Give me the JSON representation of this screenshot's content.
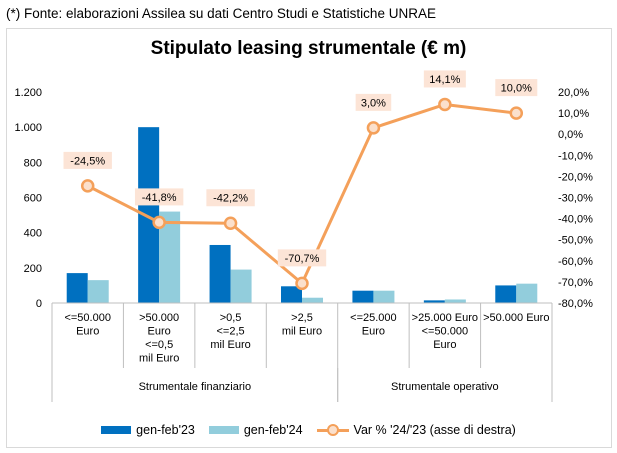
{
  "source_note": "(*) Fonte: elaborazioni Assilea su dati Centro Studi e Statistiche UNRAE",
  "colors": {
    "series1": "#0070c0",
    "series2": "#92cddc",
    "line": "#f4a05a",
    "marker_fill": "#fbe0cc",
    "label_bg": "#fce4d6"
  },
  "chart_data": {
    "type": "bar",
    "title": "Stipulato leasing strumentale (€ m)",
    "categories": [
      [
        "<=50.000",
        "Euro"
      ],
      [
        ">50.000",
        "Euro",
        "<=0,5",
        "mil Euro"
      ],
      [
        ">0,5",
        "<=2,5",
        "mil Euro"
      ],
      [
        ">2,5",
        "mil Euro"
      ],
      [
        "<=25.000",
        "Euro"
      ],
      [
        ">25.000 Euro",
        "<=50.000",
        "Euro"
      ],
      [
        ">50.000 Euro"
      ]
    ],
    "groups": [
      {
        "label": "Strumentale finanziario",
        "start": 0,
        "end": 3
      },
      {
        "label": "Strumentale operativo",
        "start": 4,
        "end": 6
      }
    ],
    "series": [
      {
        "name": "gen-feb'23",
        "axis": "left",
        "values": [
          170,
          1000,
          330,
          95,
          70,
          15,
          100
        ]
      },
      {
        "name": "gen-feb'24",
        "axis": "left",
        "values": [
          130,
          520,
          190,
          30,
          70,
          20,
          110
        ]
      },
      {
        "name": "Var % '24/'23 (asse di destra)",
        "axis": "right",
        "type": "line",
        "values": [
          -24.5,
          -41.8,
          -42.2,
          -70.7,
          3.0,
          14.1,
          10.0
        ],
        "labels": [
          "-24,5%",
          "-41,8%",
          "-42,2%",
          "-70,7%",
          "3,0%",
          "14,1%",
          "10,0%"
        ]
      }
    ],
    "y_left": {
      "min": 0,
      "max": 1200,
      "ticks": [
        0,
        200,
        400,
        600,
        800,
        1000,
        1200
      ],
      "tick_labels": [
        "0",
        "200",
        "400",
        "600",
        "800",
        "1.000",
        "1.200"
      ]
    },
    "y_right": {
      "min": -80,
      "max": 20,
      "ticks": [
        -80,
        -70,
        -60,
        -50,
        -40,
        -30,
        -20,
        -10,
        0,
        10,
        20
      ],
      "tick_labels": [
        "-80,0%",
        "-70,0%",
        "-60,0%",
        "-50,0%",
        "-40,0%",
        "-30,0%",
        "-20,0%",
        "-10,0%",
        "0,0%",
        "10,0%",
        "20,0%"
      ]
    },
    "legend_position": "bottom"
  }
}
